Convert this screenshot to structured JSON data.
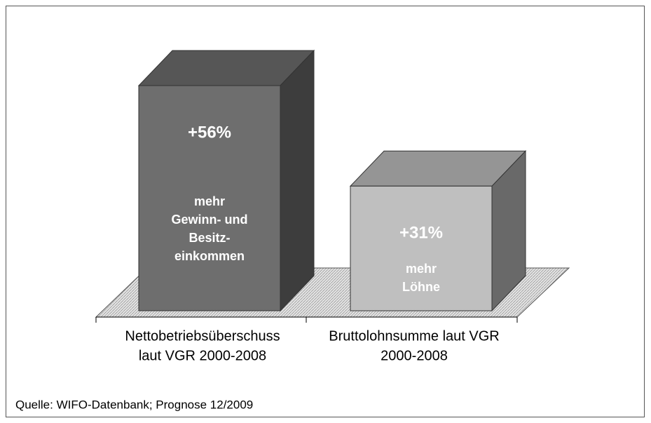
{
  "chart_data": {
    "type": "bar",
    "three_d": true,
    "categories": [
      [
        "Nettobetriebsüberschuss",
        "laut VGR 2000-2008"
      ],
      [
        "Bruttolohnsumme laut VGR",
        "2000-2008"
      ]
    ],
    "values": [
      56,
      31
    ],
    "value_labels": [
      "+56%",
      "+31%"
    ],
    "annotations": [
      [
        "mehr",
        "Gewinn- und",
        "Besitz-",
        "einkommen"
      ],
      [
        "mehr",
        "Löhne"
      ]
    ],
    "colors": [
      "#6e6e6e",
      "#bfbfbf"
    ],
    "source": "Quelle: WIFO-Datenbank; Prognose 12/2009"
  }
}
